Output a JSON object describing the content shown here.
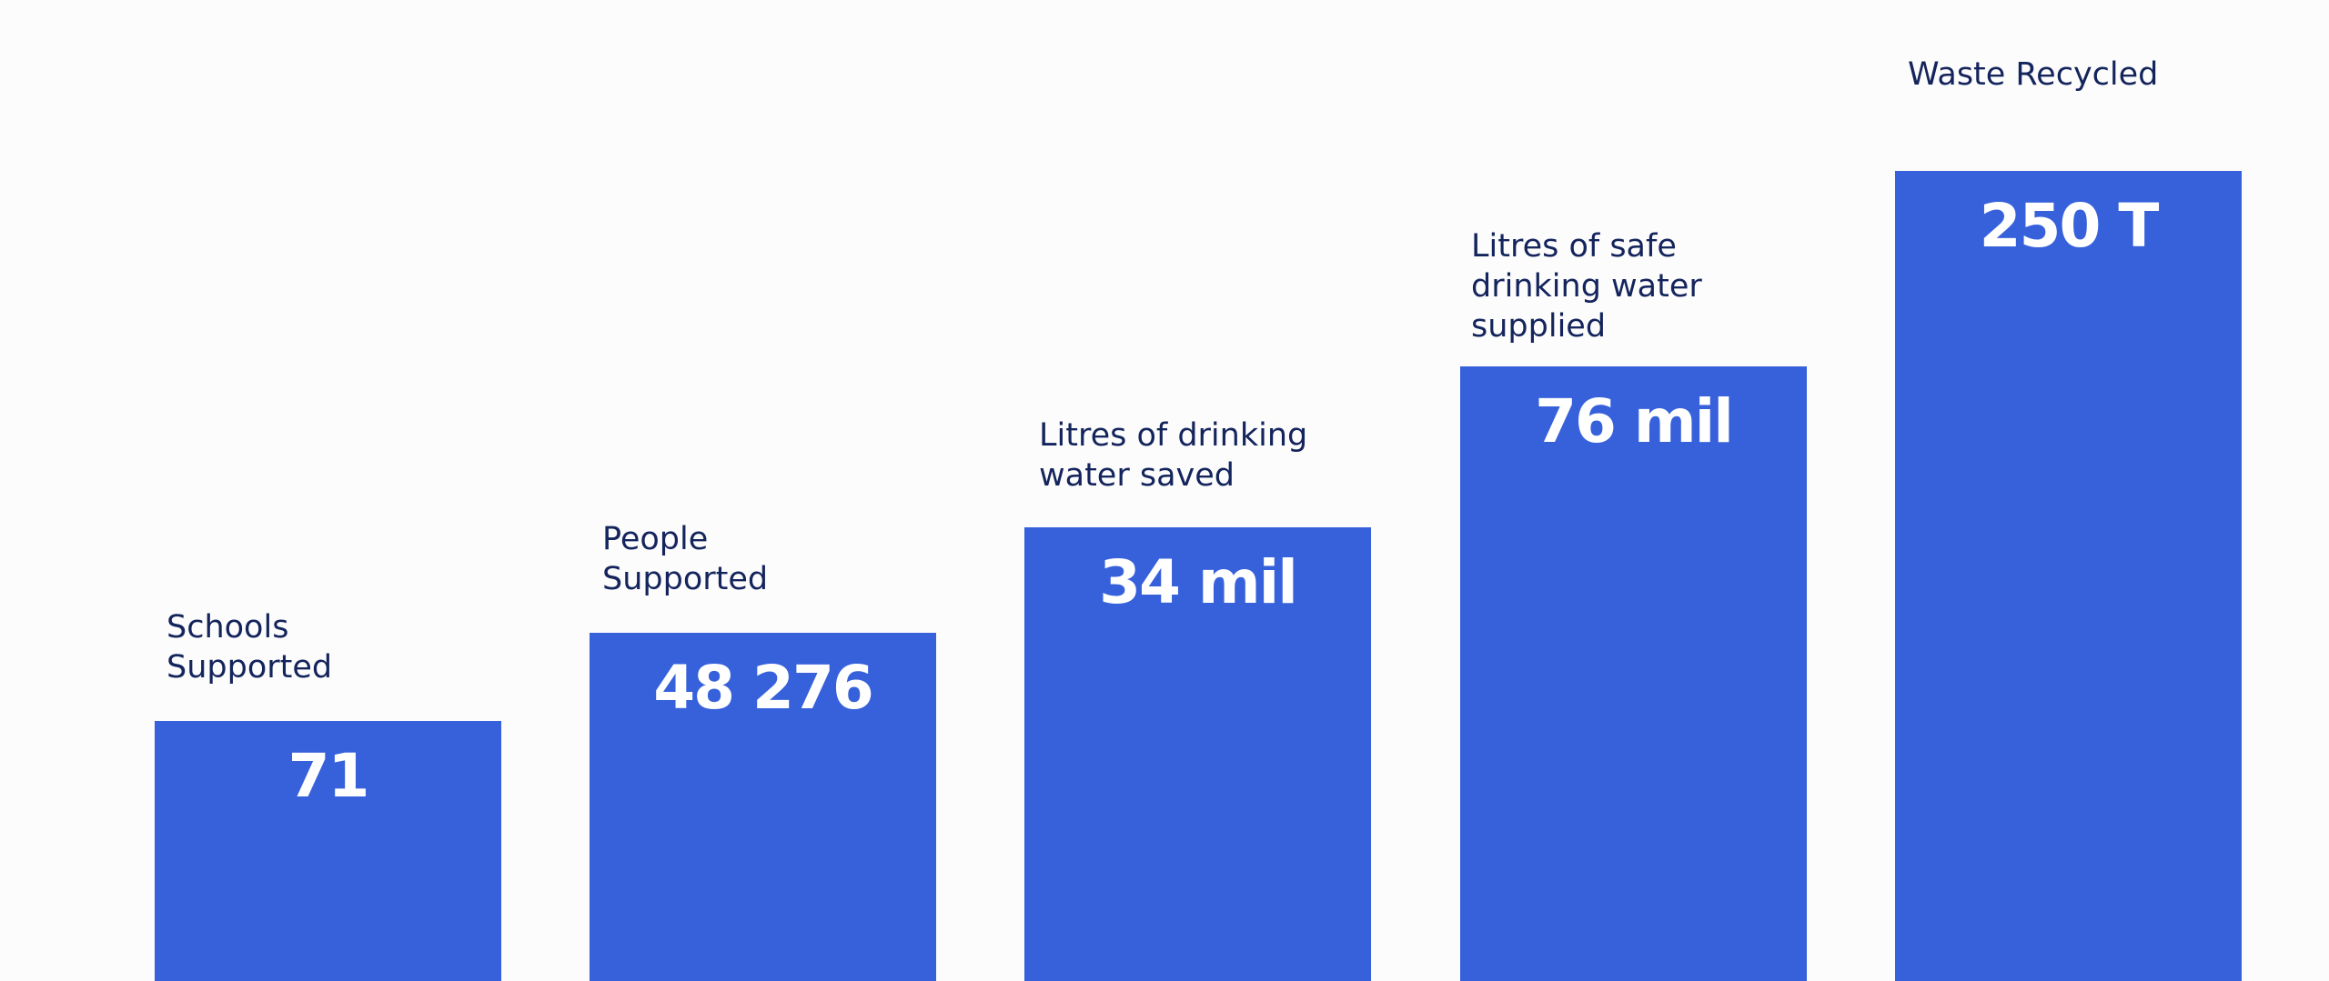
{
  "chart_data": {
    "type": "bar",
    "categories": [
      [
        "Schools",
        "Supported"
      ],
      [
        "People",
        "Supported"
      ],
      [
        "Litres of drinking",
        "water saved"
      ],
      [
        "Litres of safe",
        "drinking water",
        "supplied"
      ],
      [
        "Waste Recycled"
      ]
    ],
    "value_labels": [
      "71",
      "48 276",
      "34 mil",
      "76 mil",
      "250 T"
    ],
    "bar_color": "#3661db",
    "label_color": "#14245c",
    "value_color": "#ffffff",
    "background": "#fcfcfc",
    "grid": false,
    "legend": "none"
  }
}
